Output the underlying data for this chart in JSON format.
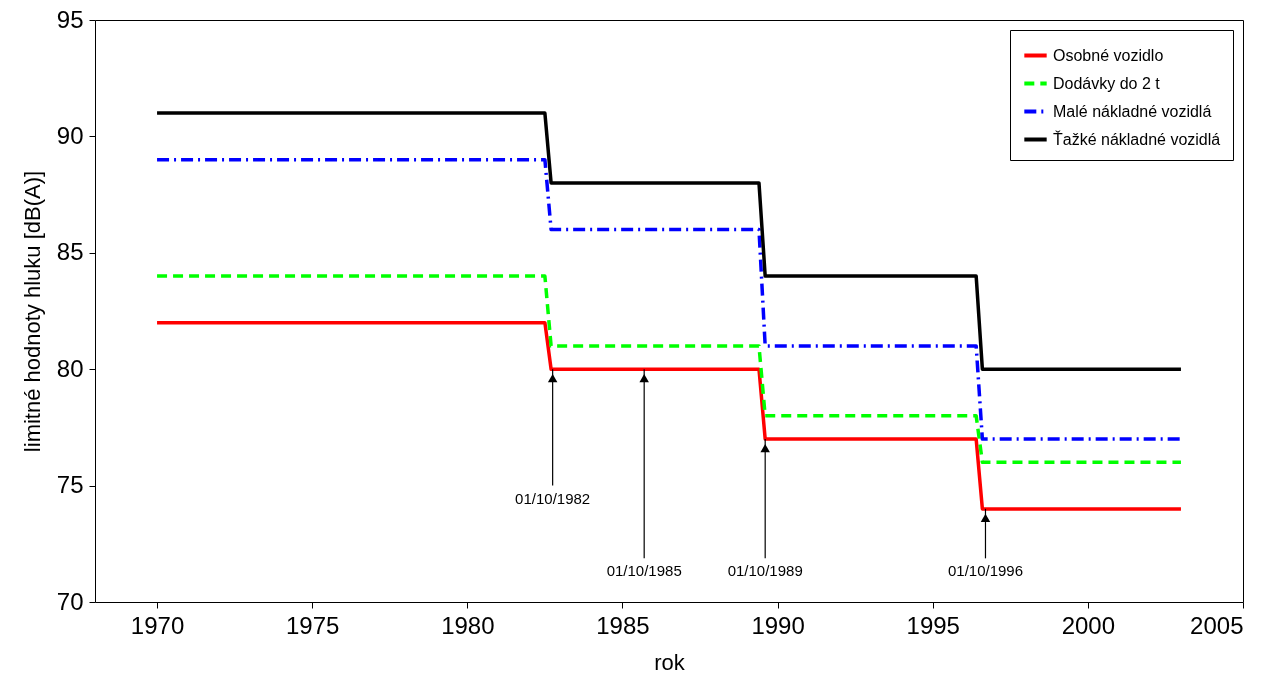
{
  "chart_data": {
    "type": "line",
    "xlabel": "rok",
    "ylabel": "limitné hodnoty hluku [dB(A)]",
    "xlim": [
      1968,
      2005
    ],
    "xticks": [
      1970,
      1975,
      1980,
      1985,
      1990,
      1995,
      2000,
      2005
    ],
    "ylim": [
      70,
      95
    ],
    "yticks": [
      70,
      75,
      80,
      85,
      90,
      95
    ],
    "grid": false,
    "legend": "top right",
    "series": [
      {
        "name": "Osobné vozidlo",
        "color": "#ff0000",
        "line_style": "solid",
        "x": [
          1970,
          1982.5,
          1982.7,
          1989.4,
          1989.6,
          1996.4,
          1996.6,
          2003
        ],
        "values": [
          82,
          82,
          80,
          80,
          77,
          77,
          74,
          74
        ]
      },
      {
        "name": "Dodávky do 2 t",
        "color": "#00ff00",
        "line_style": "dashed",
        "x": [
          1970,
          1982.5,
          1982.7,
          1989.4,
          1989.6,
          1996.4,
          1996.6,
          2003
        ],
        "values": [
          84,
          84,
          81,
          81,
          78,
          78,
          76,
          76
        ]
      },
      {
        "name": "Malé nákladné vozidlá",
        "color": "#0000ff",
        "line_style": "dashdot",
        "x": [
          1970,
          1982.5,
          1982.7,
          1989.4,
          1989.6,
          1996.4,
          1996.6,
          2003
        ],
        "values": [
          89,
          89,
          86,
          86,
          81,
          81,
          77,
          77
        ]
      },
      {
        "name": "Ťažké nákladné vozidlá",
        "color": "#000000",
        "line_style": "solid",
        "x": [
          1970,
          1982.5,
          1982.7,
          1989.4,
          1989.6,
          1996.4,
          1996.6,
          2003
        ],
        "values": [
          91,
          91,
          88,
          88,
          84,
          84,
          80,
          80
        ]
      }
    ],
    "annotations": [
      {
        "text": "01/10/1982",
        "x": 1982.75,
        "y": 80
      },
      {
        "text": "01/10/1985",
        "x": 1985.7,
        "y": 80
      },
      {
        "text": "01/10/1989",
        "x": 1989.6,
        "y": 77
      },
      {
        "text": "01/10/1996",
        "x": 1996.7,
        "y": 74
      }
    ]
  }
}
